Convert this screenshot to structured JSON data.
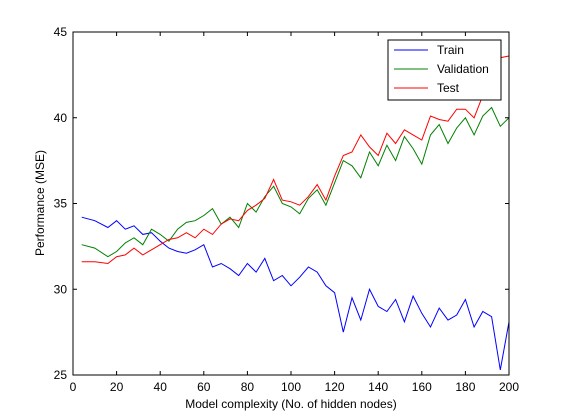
{
  "chart_data": {
    "type": "line",
    "xlabel": "Model complexity (No. of hidden nodes)",
    "ylabel": "Performance (MSE)",
    "xlim": [
      0,
      200
    ],
    "ylim": [
      25,
      45
    ],
    "xticks": [
      "0",
      "20",
      "40",
      "60",
      "80",
      "100",
      "120",
      "140",
      "160",
      "180",
      "200"
    ],
    "yticks": [
      "25",
      "30",
      "35",
      "40",
      "45"
    ],
    "grid": false,
    "legend_position": "top-right",
    "series": [
      {
        "name": "Train",
        "color": "#0000ff",
        "x": [
          4,
          10,
          16,
          20,
          24,
          28,
          32,
          36,
          40,
          44,
          48,
          52,
          56,
          60,
          64,
          68,
          72,
          76,
          80,
          84,
          88,
          92,
          96,
          100,
          104,
          108,
          112,
          116,
          120,
          124,
          128,
          132,
          136,
          140,
          144,
          148,
          152,
          156,
          160,
          164,
          168,
          172,
          176,
          180,
          184,
          188,
          192,
          196,
          200
        ],
        "y": [
          34.2,
          34.0,
          33.6,
          34.0,
          33.5,
          33.7,
          33.2,
          33.3,
          32.8,
          32.4,
          32.2,
          32.1,
          32.3,
          32.6,
          31.3,
          31.5,
          31.2,
          30.8,
          31.5,
          31.0,
          31.8,
          30.5,
          30.8,
          30.2,
          30.7,
          31.3,
          31.0,
          30.2,
          29.8,
          27.5,
          29.5,
          28.2,
          30.0,
          29.0,
          28.7,
          29.4,
          28.1,
          29.6,
          28.6,
          27.8,
          28.9,
          28.2,
          28.5,
          29.4,
          27.8,
          28.7,
          28.4,
          25.3,
          28.1
        ]
      },
      {
        "name": "Validation",
        "color": "#008000",
        "x": [
          4,
          10,
          16,
          20,
          24,
          28,
          32,
          36,
          40,
          44,
          48,
          52,
          56,
          60,
          64,
          68,
          72,
          76,
          80,
          84,
          88,
          92,
          96,
          100,
          104,
          108,
          112,
          116,
          120,
          124,
          128,
          132,
          136,
          140,
          144,
          148,
          152,
          156,
          160,
          164,
          168,
          172,
          176,
          180,
          184,
          188,
          192,
          196,
          200
        ],
        "y": [
          32.6,
          32.4,
          31.9,
          32.2,
          32.7,
          33.0,
          32.6,
          33.5,
          33.2,
          32.8,
          33.5,
          33.9,
          34.0,
          34.3,
          34.7,
          33.8,
          34.2,
          33.6,
          35.0,
          34.5,
          35.4,
          36.0,
          35.0,
          34.8,
          34.4,
          35.3,
          35.8,
          34.9,
          36.2,
          37.5,
          37.2,
          36.5,
          38.0,
          37.2,
          38.4,
          37.5,
          38.9,
          38.2,
          37.3,
          39.0,
          39.6,
          38.5,
          39.4,
          40.0,
          39.0,
          40.1,
          40.6,
          39.5,
          40.0
        ]
      },
      {
        "name": "Test",
        "color": "#ff0000",
        "x": [
          4,
          10,
          16,
          20,
          24,
          28,
          32,
          36,
          40,
          44,
          48,
          52,
          56,
          60,
          64,
          68,
          72,
          76,
          80,
          84,
          88,
          92,
          96,
          100,
          104,
          108,
          112,
          116,
          120,
          124,
          128,
          132,
          136,
          140,
          144,
          148,
          152,
          156,
          160,
          164,
          168,
          172,
          176,
          180,
          184,
          188,
          192,
          196,
          200
        ],
        "y": [
          31.6,
          31.6,
          31.5,
          31.9,
          32.0,
          32.4,
          32.0,
          32.3,
          32.6,
          32.9,
          33.0,
          33.3,
          33.0,
          33.5,
          33.2,
          33.8,
          34.1,
          34.0,
          34.6,
          34.9,
          35.3,
          36.4,
          35.2,
          35.1,
          34.9,
          35.4,
          36.1,
          35.2,
          36.6,
          37.8,
          38.0,
          39.0,
          38.3,
          37.8,
          39.1,
          38.5,
          39.3,
          39.0,
          38.7,
          40.1,
          39.9,
          39.8,
          40.5,
          40.5,
          40.0,
          41.3,
          41.8,
          43.5,
          43.6
        ]
      }
    ]
  }
}
